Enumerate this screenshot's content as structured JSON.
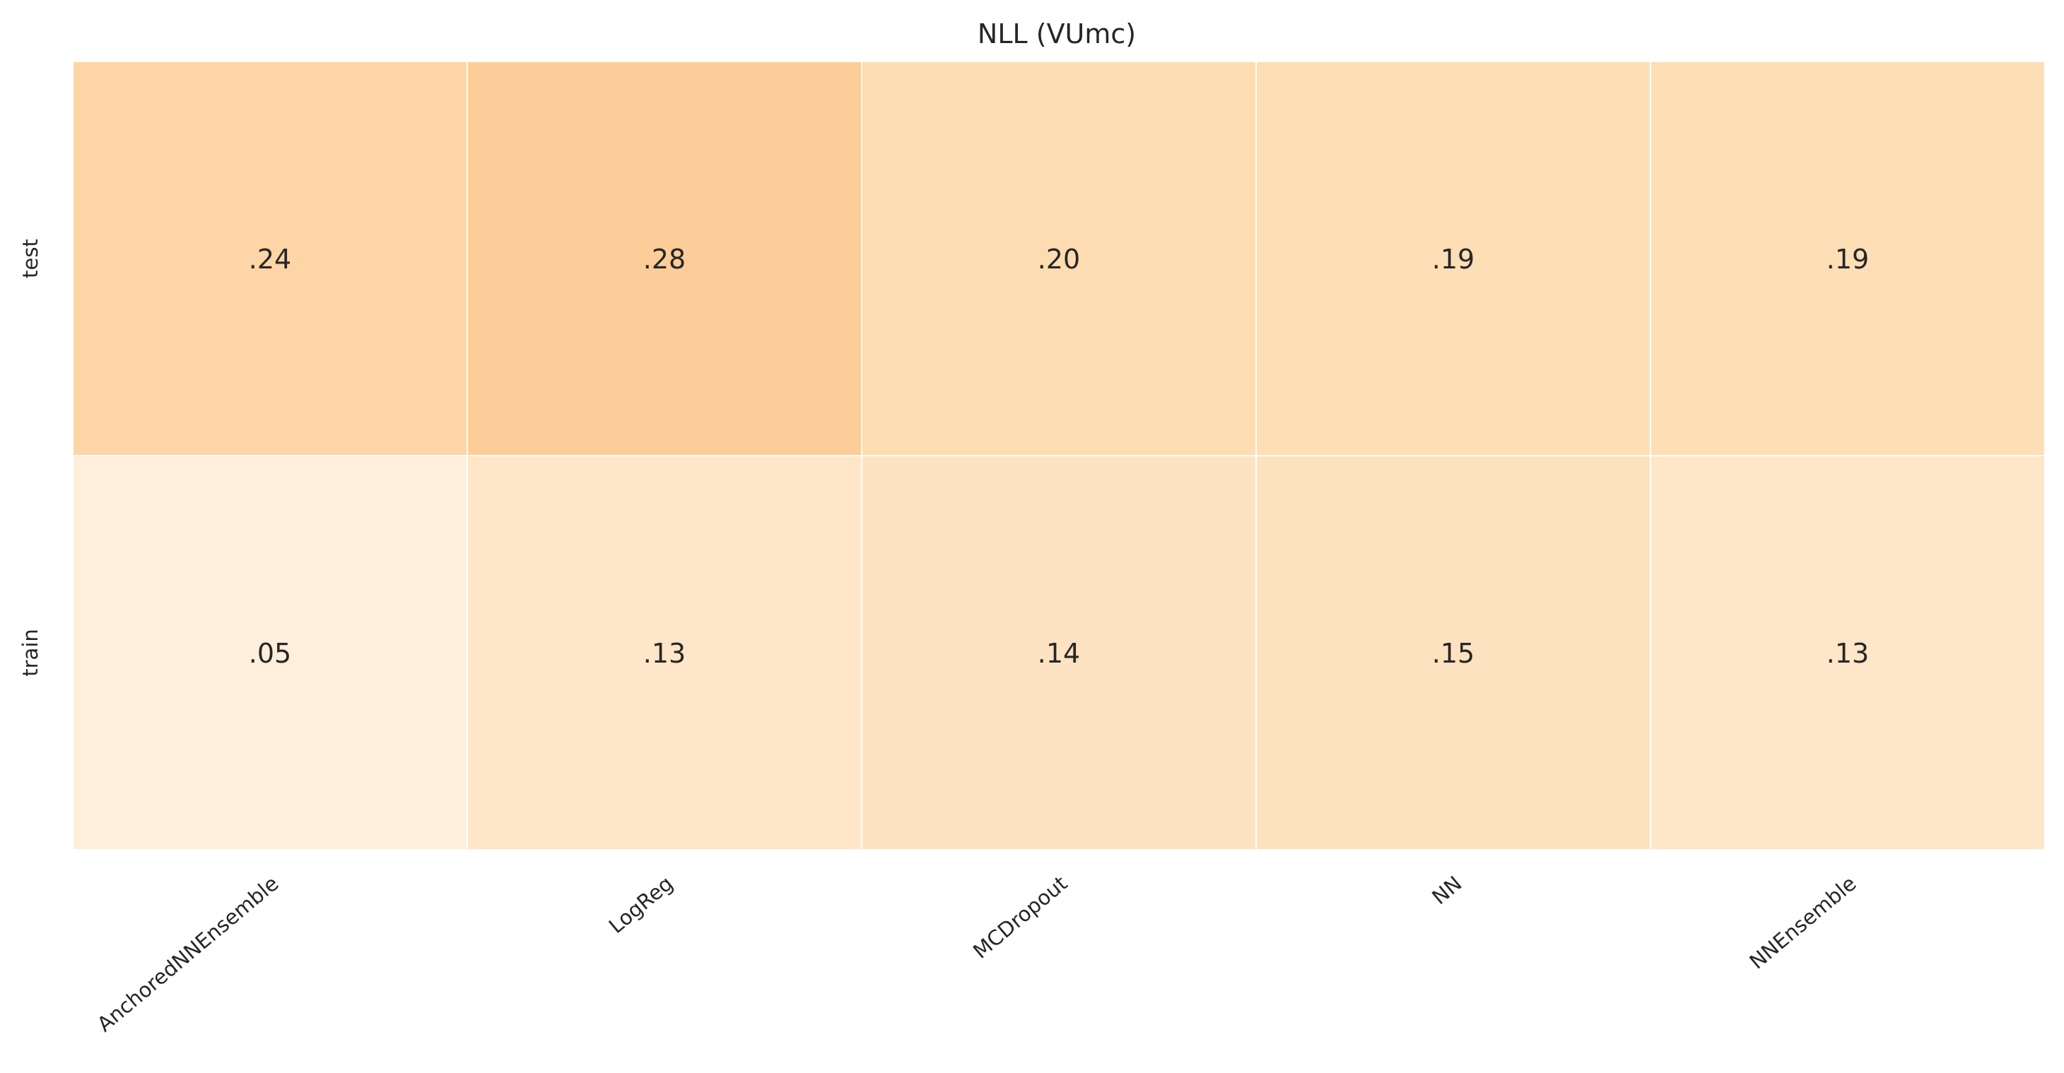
{
  "chart_data": {
    "type": "heatmap",
    "title": "NLL (VUmc)",
    "columns": [
      "AnchoredNNEnsemble",
      "LogReg",
      "MCDropout",
      "NN",
      "NNEnsemble"
    ],
    "rows": [
      "test",
      "train"
    ],
    "values": [
      [
        0.24,
        0.28,
        0.2,
        0.19,
        0.19
      ],
      [
        0.05,
        0.13,
        0.14,
        0.15,
        0.13
      ]
    ],
    "value_labels": [
      [
        ".24",
        ".28",
        ".20",
        ".19",
        ".19"
      ],
      [
        ".05",
        ".13",
        ".14",
        ".15",
        ".13"
      ]
    ],
    "colors": [
      [
        "#fdd5a6",
        "#fccd98",
        "#fddcb2",
        "#fddeb5",
        "#fddeb5"
      ],
      [
        "#feefdc",
        "#fee6c8",
        "#fee3c3",
        "#fde2bf",
        "#fee6c8"
      ]
    ],
    "cell_border_color": "#ffffff",
    "text_color": "#262626",
    "grid": false,
    "legend": "none"
  }
}
